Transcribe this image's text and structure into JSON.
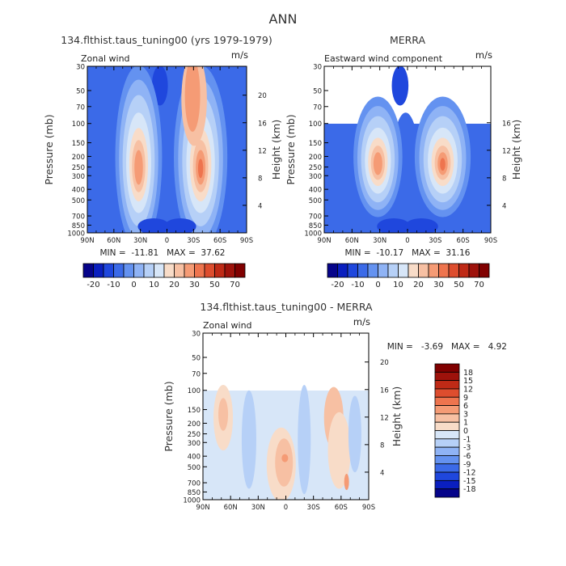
{
  "page": {
    "title": "ANN"
  },
  "colors": {
    "panel_scale": [
      "#06048a",
      "#0a1fbf",
      "#1f47dd",
      "#3b6ae8",
      "#6492f0",
      "#8fb3f5",
      "#b6d0f7",
      "#d7e6f8",
      "#f8dcc8",
      "#f7c0a3",
      "#f59b75",
      "#ee744e",
      "#dd4d2e",
      "#bf2a16",
      "#9e120b",
      "#800000"
    ],
    "diff_scale": [
      "#06048a",
      "#0a1fbf",
      "#1f47dd",
      "#3b6ae8",
      "#6492f0",
      "#8fb3f5",
      "#b6d0f7",
      "#d7e6f8",
      "#f8dcc8",
      "#f7c0a3",
      "#f59b75",
      "#ee744e",
      "#dd4d2e",
      "#bf2a16",
      "#9e120b",
      "#800000"
    ]
  },
  "chart_data": [
    {
      "type": "heatmap",
      "title": "134.flthist.taus_tuning00 (yrs 1979-1979)",
      "variable": "Zonal wind",
      "units": "m/s",
      "xlabel": "",
      "ylabel": "Pressure (mb)",
      "ylabel_right": "Height (km)",
      "x_ticks": [
        "90N",
        "60N",
        "30N",
        "0",
        "30S",
        "60S",
        "90S"
      ],
      "x_values": [
        90,
        60,
        30,
        0,
        -30,
        -60,
        -90
      ],
      "y_ticks": [
        "30",
        "50",
        "70",
        "100",
        "150",
        "200",
        "250",
        "300",
        "400",
        "500",
        "700",
        "850",
        "1000"
      ],
      "y_values": [
        30,
        50,
        70,
        100,
        150,
        200,
        250,
        300,
        400,
        500,
        700,
        850,
        1000
      ],
      "y_right_ticks": [
        "4",
        "8",
        "12",
        "16",
        "20"
      ],
      "y_right_values": [
        4,
        8,
        12,
        16,
        20
      ],
      "ylim": [
        1000,
        30
      ],
      "yscale": "log",
      "data_top_pressure": 30,
      "jets": [
        {
          "lat": 32,
          "pressure": 200,
          "peak": 20
        },
        {
          "lat": -38,
          "pressure": 200,
          "peak": 37
        }
      ],
      "stats": "MIN =  -11.81   MAX =  37.62",
      "min": -11.81,
      "max": 37.62,
      "colorbar_labels": [
        "-20",
        "-10",
        "0",
        "10",
        "20",
        "30",
        "50",
        "70"
      ]
    },
    {
      "type": "heatmap",
      "title": "MERRA",
      "variable": "Eastward wind component",
      "units": "m/s",
      "xlabel": "",
      "ylabel": "Pressure (mb)",
      "ylabel_right": "Height (km)",
      "x_ticks": [
        "90N",
        "60N",
        "30N",
        "0",
        "30S",
        "60S",
        "90S"
      ],
      "x_values": [
        90,
        60,
        30,
        0,
        -30,
        -60,
        -90
      ],
      "y_ticks": [
        "30",
        "50",
        "70",
        "100",
        "150",
        "200",
        "250",
        "300",
        "400",
        "500",
        "700",
        "850",
        "1000"
      ],
      "y_values": [
        30,
        50,
        70,
        100,
        150,
        200,
        250,
        300,
        400,
        500,
        700,
        850,
        1000
      ],
      "y_right_ticks": [
        "4",
        "8",
        "12",
        "16"
      ],
      "y_right_values": [
        4,
        8,
        12,
        16
      ],
      "ylim": [
        1000,
        30
      ],
      "yscale": "log",
      "data_top_pressure": 100,
      "jets": [
        {
          "lat": 32,
          "pressure": 200,
          "peak": 22
        },
        {
          "lat": -38,
          "pressure": 200,
          "peak": 31
        }
      ],
      "stats": "MIN =  -10.17   MAX =  31.16",
      "min": -10.17,
      "max": 31.16,
      "colorbar_labels": [
        "-20",
        "-10",
        "0",
        "10",
        "20",
        "30",
        "50",
        "70"
      ]
    },
    {
      "type": "heatmap",
      "title": "134.flthist.taus_tuning00 - MERRA",
      "variable": "Zonal wind",
      "units": "m/s",
      "xlabel": "",
      "ylabel": "Pressure (mb)",
      "ylabel_right": "Height (km)",
      "x_ticks": [
        "90N",
        "60N",
        "30N",
        "0",
        "30S",
        "60S",
        "90S"
      ],
      "x_values": [
        90,
        60,
        30,
        0,
        -30,
        -60,
        -90
      ],
      "y_ticks": [
        "30",
        "50",
        "70",
        "100",
        "150",
        "200",
        "250",
        "300",
        "400",
        "500",
        "700",
        "850",
        "1000"
      ],
      "y_values": [
        30,
        50,
        70,
        100,
        150,
        200,
        250,
        300,
        400,
        500,
        700,
        850,
        1000
      ],
      "y_right_ticks": [
        "4",
        "8",
        "12",
        "16",
        "20"
      ],
      "y_right_values": [
        4,
        8,
        12,
        16,
        20
      ],
      "ylim": [
        1000,
        30
      ],
      "yscale": "log",
      "data_top_pressure": 100,
      "stats": "MIN =   -3.69   MAX =   4.92",
      "min": -3.69,
      "max": 4.92,
      "colorbar_labels": [
        "18",
        "15",
        "12",
        "9",
        "6",
        "3",
        "1",
        "0",
        "-1",
        "-3",
        "-6",
        "-9",
        "-12",
        "-15",
        "-18"
      ]
    }
  ]
}
